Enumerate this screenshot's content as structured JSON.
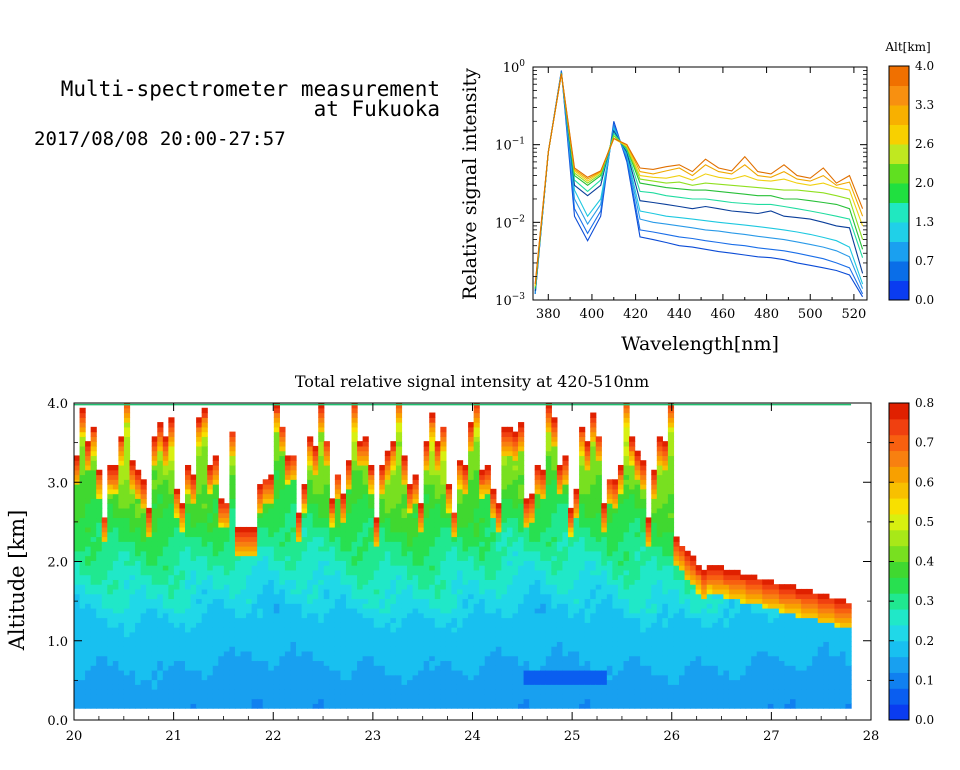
{
  "header": {
    "title_line1": "Multi-spectrometer measurement",
    "title_line2": "at Fukuoka",
    "date_range": "2017/08/08 20:00-27:57"
  },
  "chart_data": [
    {
      "type": "line",
      "xlabel": "Wavelength[nm]",
      "ylabel": "Relative signal intensity",
      "xlim": [
        373,
        526
      ],
      "ylim": [
        0.001,
        1
      ],
      "yscale": "log",
      "x_ticks": [
        380,
        400,
        420,
        440,
        460,
        480,
        500,
        520
      ],
      "y_ticks": [
        {
          "value": 0.001,
          "base": "10",
          "exp": "−3"
        },
        {
          "value": 0.01,
          "base": "10",
          "exp": "−2"
        },
        {
          "value": 0.1,
          "base": "10",
          "exp": "−1"
        },
        {
          "value": 1,
          "base": "10",
          "exp": "0"
        }
      ],
      "x": [
        374,
        380,
        386,
        392,
        398,
        404,
        410,
        416,
        422,
        428,
        434,
        440,
        446,
        452,
        458,
        464,
        470,
        476,
        482,
        488,
        494,
        500,
        506,
        512,
        518,
        524
      ],
      "series": [
        {
          "color": "#0a4bd6",
          "values": [
            0.0012,
            0.08,
            0.9,
            0.012,
            0.0058,
            0.012,
            0.2,
            0.06,
            0.0065,
            0.006,
            0.0055,
            0.005,
            0.0048,
            0.0045,
            0.0042,
            0.004,
            0.0038,
            0.0036,
            0.0035,
            0.0033,
            0.003,
            0.0028,
            0.0026,
            0.0024,
            0.0021,
            0.0011
          ]
        },
        {
          "color": "#1a6ee8",
          "values": [
            0.0012,
            0.08,
            0.88,
            0.015,
            0.0072,
            0.014,
            0.18,
            0.065,
            0.008,
            0.0075,
            0.007,
            0.0065,
            0.0062,
            0.0058,
            0.0055,
            0.0052,
            0.005,
            0.0047,
            0.0045,
            0.0043,
            0.004,
            0.0037,
            0.0034,
            0.003,
            0.0026,
            0.0012
          ]
        },
        {
          "color": "#2a9ae8",
          "values": [
            0.0012,
            0.08,
            0.86,
            0.02,
            0.0095,
            0.017,
            0.17,
            0.07,
            0.011,
            0.01,
            0.0095,
            0.009,
            0.0085,
            0.008,
            0.0077,
            0.0073,
            0.007,
            0.0066,
            0.0063,
            0.006,
            0.0056,
            0.0052,
            0.0048,
            0.0043,
            0.0036,
            0.0014
          ]
        },
        {
          "color": "#1ec8e0",
          "values": [
            0.0013,
            0.08,
            0.85,
            0.026,
            0.012,
            0.02,
            0.16,
            0.075,
            0.014,
            0.013,
            0.012,
            0.0115,
            0.011,
            0.0105,
            0.01,
            0.0096,
            0.0092,
            0.0088,
            0.0084,
            0.008,
            0.0075,
            0.007,
            0.0064,
            0.0058,
            0.0048,
            0.0016
          ]
        },
        {
          "color": "#0a3e9a",
          "values": [
            0.0013,
            0.08,
            0.85,
            0.03,
            0.022,
            0.03,
            0.15,
            0.08,
            0.019,
            0.018,
            0.017,
            0.016,
            0.015,
            0.016,
            0.015,
            0.014,
            0.0135,
            0.013,
            0.014,
            0.012,
            0.0115,
            0.011,
            0.01,
            0.009,
            0.0085,
            0.0022
          ]
        },
        {
          "color": "#20dca0",
          "values": [
            0.0014,
            0.08,
            0.84,
            0.035,
            0.025,
            0.035,
            0.14,
            0.085,
            0.025,
            0.024,
            0.022,
            0.021,
            0.02,
            0.02,
            0.019,
            0.018,
            0.0175,
            0.017,
            0.017,
            0.016,
            0.015,
            0.014,
            0.013,
            0.012,
            0.011,
            0.0035
          ]
        },
        {
          "color": "#28c038",
          "values": [
            0.0014,
            0.08,
            0.83,
            0.04,
            0.03,
            0.04,
            0.13,
            0.09,
            0.032,
            0.03,
            0.028,
            0.027,
            0.026,
            0.026,
            0.025,
            0.024,
            0.023,
            0.022,
            0.022,
            0.02,
            0.02,
            0.019,
            0.018,
            0.017,
            0.015,
            0.0045
          ]
        },
        {
          "color": "#90e020",
          "values": [
            0.0015,
            0.08,
            0.82,
            0.043,
            0.032,
            0.042,
            0.13,
            0.092,
            0.036,
            0.034,
            0.032,
            0.033,
            0.03,
            0.032,
            0.031,
            0.03,
            0.029,
            0.028,
            0.027,
            0.026,
            0.026,
            0.025,
            0.024,
            0.022,
            0.02,
            0.006
          ]
        },
        {
          "color": "#f0d010",
          "values": [
            0.0015,
            0.08,
            0.82,
            0.046,
            0.034,
            0.044,
            0.12,
            0.095,
            0.04,
            0.038,
            0.037,
            0.04,
            0.035,
            0.042,
            0.038,
            0.036,
            0.04,
            0.035,
            0.034,
            0.036,
            0.032,
            0.03,
            0.032,
            0.028,
            0.026,
            0.009
          ]
        },
        {
          "color": "#f0a800",
          "values": [
            0.0016,
            0.08,
            0.82,
            0.048,
            0.036,
            0.045,
            0.12,
            0.1,
            0.045,
            0.042,
            0.046,
            0.05,
            0.04,
            0.055,
            0.045,
            0.042,
            0.055,
            0.04,
            0.038,
            0.045,
            0.036,
            0.034,
            0.04,
            0.03,
            0.033,
            0.012
          ]
        },
        {
          "color": "#e07000",
          "values": [
            0.0016,
            0.08,
            0.82,
            0.05,
            0.038,
            0.046,
            0.12,
            0.1,
            0.05,
            0.048,
            0.052,
            0.055,
            0.045,
            0.065,
            0.05,
            0.046,
            0.07,
            0.045,
            0.042,
            0.055,
            0.04,
            0.037,
            0.05,
            0.032,
            0.04,
            0.015
          ]
        }
      ]
    },
    {
      "type": "heatmap",
      "title": "Total relative signal intensity at 420-510nm",
      "xlabel": "",
      "ylabel": "Altitude [km]",
      "xlim": [
        20,
        28
      ],
      "ylim": [
        0,
        4
      ],
      "x_ticks": [
        "20",
        "21",
        "22",
        "23",
        "24",
        "25",
        "26",
        "27",
        "28"
      ],
      "y_ticks": [
        "0.0",
        "1.0",
        "2.0",
        "3.0",
        "4.0"
      ],
      "data_end_hour": 27.8,
      "color_range": [
        0,
        0.8
      ],
      "colorbar_ticks": [
        "0.0",
        "0.1",
        "0.2",
        "0.3",
        "0.4",
        "0.5",
        "0.6",
        "0.7",
        "0.8"
      ]
    }
  ],
  "colorbar_top": {
    "label": "Alt[km]",
    "ticks": [
      "0.0",
      "0.7",
      "1.3",
      "2.0",
      "2.6",
      "3.3",
      "4.0"
    ],
    "colors": [
      "#0a3cf0",
      "#0a6ee8",
      "#1aa0f0",
      "#20d0e8",
      "#20e8c0",
      "#20e040",
      "#60e020",
      "#c0e820",
      "#f8d000",
      "#f8b000",
      "#f89010",
      "#f07000"
    ]
  },
  "colorbar_bottom": {
    "colors": [
      "#0a3cf0",
      "#0a5ef0",
      "#1080f0",
      "#18a0f0",
      "#18c0f0",
      "#20d8e8",
      "#20e8c8",
      "#20e890",
      "#28e050",
      "#40d830",
      "#78e020",
      "#a8e818",
      "#d8f010",
      "#f8e000",
      "#f8c000",
      "#f8a000",
      "#f88010",
      "#f86010",
      "#f04010",
      "#e02000"
    ]
  }
}
